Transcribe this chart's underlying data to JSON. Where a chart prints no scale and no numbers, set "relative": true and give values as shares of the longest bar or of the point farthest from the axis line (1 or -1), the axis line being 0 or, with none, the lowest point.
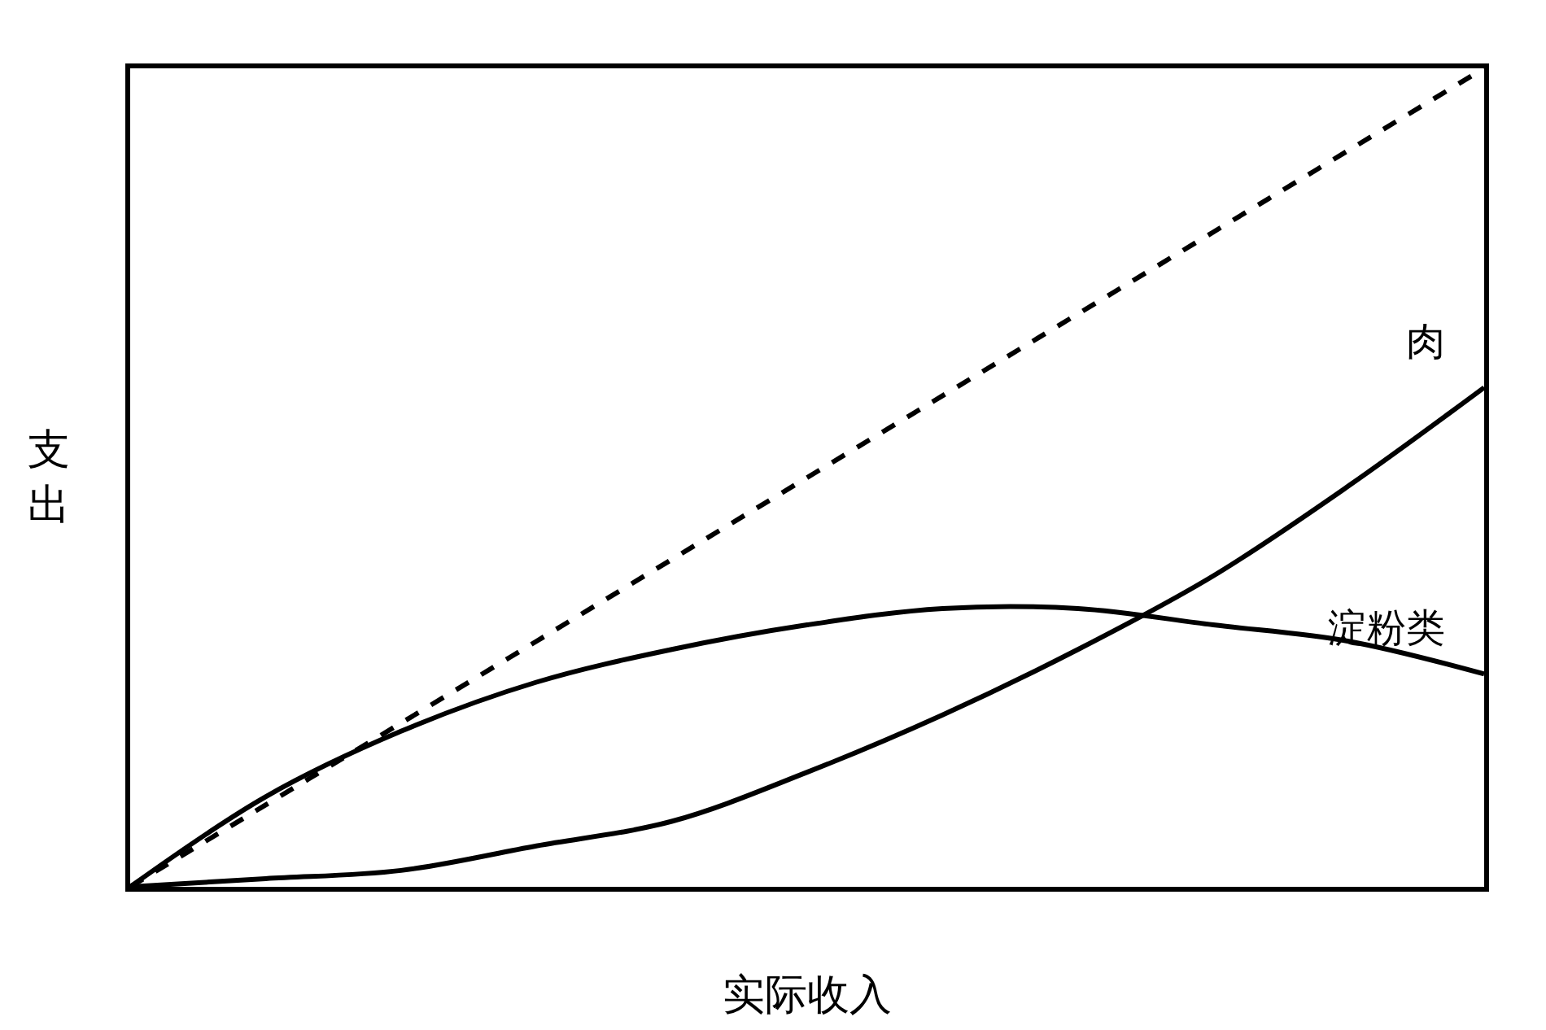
{
  "chart_data": {
    "type": "line",
    "relative": true,
    "xlabel": "实际收入",
    "ylabel": "支出",
    "legend": false,
    "marker": "none",
    "categories": [
      null,
      null,
      null,
      null,
      null,
      null,
      null,
      null,
      null,
      null,
      null
    ],
    "series": [
      {
        "color": "#000000",
        "line_style": "dashed",
        "values": [
          0,
          0.1,
          0.2,
          0.3,
          0.4,
          0.5,
          0.6,
          0.7,
          0.8,
          0.9,
          1
        ]
      },
      {
        "name": "肉",
        "color": "#000000",
        "line_style": "solid",
        "values": [
          0,
          0.01,
          0.02,
          0.05,
          0.08,
          0.14,
          0.21,
          0.29,
          0.38,
          0.49,
          0.61
        ]
      },
      {
        "name": "淀粉类",
        "color": "#000000",
        "line_style": "solid",
        "values": [
          0,
          0.11,
          0.19,
          0.25,
          0.29,
          0.32,
          0.34,
          0.34,
          0.32,
          0.3,
          0.26
        ]
      }
    ]
  }
}
